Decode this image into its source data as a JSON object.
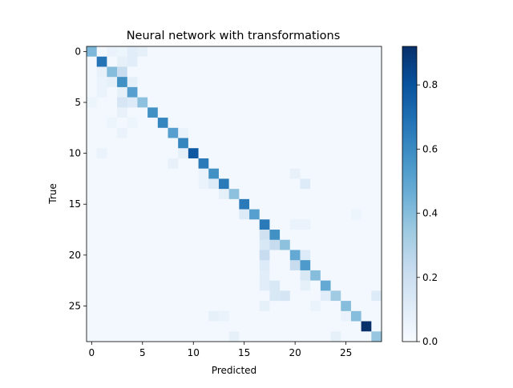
{
  "chart_data": {
    "type": "heatmap",
    "title": "Neural network with transformations",
    "xlabel": "Predicted",
    "ylabel": "True",
    "n_classes": 29,
    "x_ticks": [
      0,
      5,
      10,
      15,
      20,
      25
    ],
    "y_ticks": [
      0,
      5,
      10,
      15,
      20,
      25
    ],
    "colorbar": {
      "range": [
        0.0,
        0.92
      ],
      "ticks": [
        "0.0",
        "0.2",
        "0.4",
        "0.6",
        "0.8"
      ],
      "tick_values": [
        0.0,
        0.2,
        0.4,
        0.6,
        0.8
      ],
      "colormap": "Blues"
    },
    "diagonal": [
      0.42,
      0.68,
      0.4,
      0.58,
      0.52,
      0.38,
      0.58,
      0.62,
      0.52,
      0.62,
      0.78,
      0.66,
      0.58,
      0.66,
      0.38,
      0.66,
      0.52,
      0.66,
      0.58,
      0.38,
      0.48,
      0.54,
      0.4,
      0.48,
      0.34,
      0.4,
      0.4,
      0.92,
      0.36
    ],
    "off_diagonal": [
      {
        "row": 0,
        "col": 2,
        "value": 0.06
      },
      {
        "row": 0,
        "col": 3,
        "value": 0.05
      },
      {
        "row": 0,
        "col": 4,
        "value": 0.1
      },
      {
        "row": 0,
        "col": 5,
        "value": 0.08
      },
      {
        "row": 1,
        "col": 3,
        "value": 0.08
      },
      {
        "row": 1,
        "col": 4,
        "value": 0.1
      },
      {
        "row": 2,
        "col": 1,
        "value": 0.07
      },
      {
        "row": 2,
        "col": 3,
        "value": 0.22
      },
      {
        "row": 3,
        "col": 1,
        "value": 0.06
      },
      {
        "row": 3,
        "col": 2,
        "value": 0.08
      },
      {
        "row": 3,
        "col": 4,
        "value": 0.08
      },
      {
        "row": 4,
        "col": 1,
        "value": 0.06
      },
      {
        "row": 4,
        "col": 3,
        "value": 0.08
      },
      {
        "row": 5,
        "col": 0,
        "value": 0.05
      },
      {
        "row": 5,
        "col": 3,
        "value": 0.15
      },
      {
        "row": 5,
        "col": 4,
        "value": 0.12
      },
      {
        "row": 6,
        "col": 3,
        "value": 0.07
      },
      {
        "row": 7,
        "col": 2,
        "value": 0.05
      },
      {
        "row": 7,
        "col": 4,
        "value": 0.05
      },
      {
        "row": 8,
        "col": 3,
        "value": 0.06
      },
      {
        "row": 8,
        "col": 9,
        "value": 0.06
      },
      {
        "row": 10,
        "col": 1,
        "value": 0.06
      },
      {
        "row": 10,
        "col": 9,
        "value": 0.08
      },
      {
        "row": 11,
        "col": 8,
        "value": 0.07
      },
      {
        "row": 12,
        "col": 11,
        "value": 0.06
      },
      {
        "row": 12,
        "col": 20,
        "value": 0.07
      },
      {
        "row": 13,
        "col": 11,
        "value": 0.06
      },
      {
        "row": 13,
        "col": 12,
        "value": 0.12
      },
      {
        "row": 13,
        "col": 21,
        "value": 0.12
      },
      {
        "row": 14,
        "col": 13,
        "value": 0.08
      },
      {
        "row": 16,
        "col": 15,
        "value": 0.12
      },
      {
        "row": 16,
        "col": 26,
        "value": 0.05
      },
      {
        "row": 17,
        "col": 20,
        "value": 0.06
      },
      {
        "row": 17,
        "col": 21,
        "value": 0.06
      },
      {
        "row": 18,
        "col": 17,
        "value": 0.18
      },
      {
        "row": 19,
        "col": 17,
        "value": 0.14
      },
      {
        "row": 19,
        "col": 18,
        "value": 0.22
      },
      {
        "row": 20,
        "col": 17,
        "value": 0.22
      },
      {
        "row": 20,
        "col": 21,
        "value": 0.12
      },
      {
        "row": 21,
        "col": 17,
        "value": 0.12
      },
      {
        "row": 21,
        "col": 20,
        "value": 0.22
      },
      {
        "row": 22,
        "col": 17,
        "value": 0.1
      },
      {
        "row": 22,
        "col": 21,
        "value": 0.14
      },
      {
        "row": 23,
        "col": 17,
        "value": 0.1
      },
      {
        "row": 23,
        "col": 18,
        "value": 0.14
      },
      {
        "row": 23,
        "col": 21,
        "value": 0.08
      },
      {
        "row": 24,
        "col": 18,
        "value": 0.14
      },
      {
        "row": 24,
        "col": 19,
        "value": 0.16
      },
      {
        "row": 24,
        "col": 23,
        "value": 0.1
      },
      {
        "row": 24,
        "col": 28,
        "value": 0.12
      },
      {
        "row": 25,
        "col": 17,
        "value": 0.08
      },
      {
        "row": 25,
        "col": 22,
        "value": 0.06
      },
      {
        "row": 26,
        "col": 12,
        "value": 0.08
      },
      {
        "row": 26,
        "col": 13,
        "value": 0.06
      },
      {
        "row": 26,
        "col": 25,
        "value": 0.06
      },
      {
        "row": 28,
        "col": 14,
        "value": 0.08
      },
      {
        "row": 28,
        "col": 24,
        "value": 0.08
      }
    ],
    "background_value": 0.02
  }
}
